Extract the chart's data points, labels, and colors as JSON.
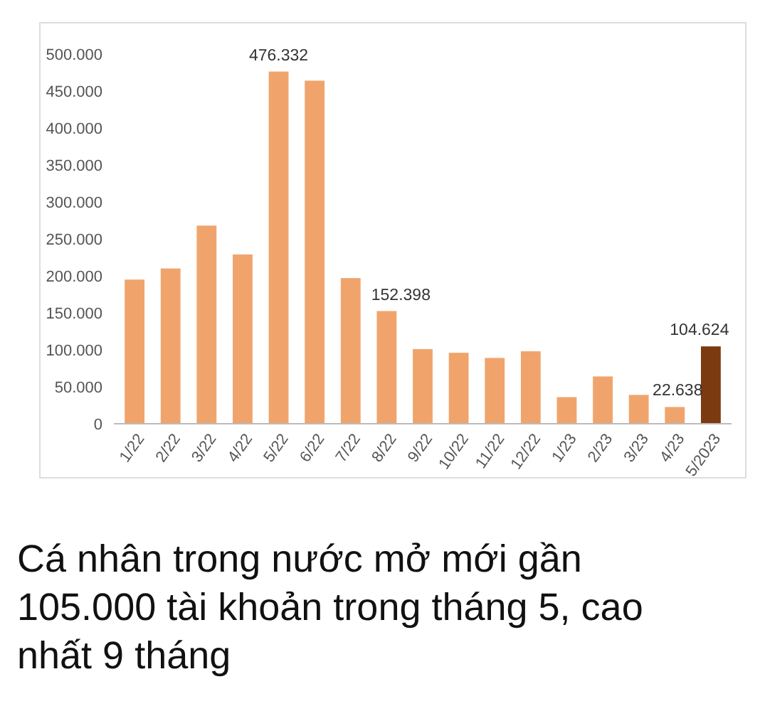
{
  "chart_data": {
    "type": "bar",
    "title": "Cá nhân trong nước mở mới gần 105.000 tài khoản trong tháng 5, cao nhất 9 tháng",
    "categories": [
      "1/22",
      "2/22",
      "3/22",
      "4/22",
      "5/22",
      "6/22",
      "7/22",
      "8/22",
      "9/22",
      "10/22",
      "11/22",
      "12/22",
      "1/23",
      "2/23",
      "3/23",
      "4/23",
      "5/2023"
    ],
    "values": [
      195000,
      210000,
      268000,
      229000,
      476332,
      464000,
      197000,
      152398,
      101000,
      96000,
      89000,
      98000,
      36000,
      64000,
      39000,
      22638,
      104624
    ],
    "colors": [
      "#f0a46c",
      "#f0a46c",
      "#f0a46c",
      "#f0a46c",
      "#f0a46c",
      "#f0a46c",
      "#f0a46c",
      "#f0a46c",
      "#f0a46c",
      "#f0a46c",
      "#f0a46c",
      "#f0a46c",
      "#f0a46c",
      "#f0a46c",
      "#f0a46c",
      "#f0a46c",
      "#7b3a10"
    ],
    "value_labels": [
      null,
      null,
      null,
      null,
      "476.332",
      null,
      null,
      "152.398",
      null,
      null,
      null,
      null,
      null,
      null,
      null,
      "22.638",
      "104.624"
    ],
    "ylim": [
      0,
      500000
    ],
    "yticks": [
      {
        "value": 0,
        "label": "0"
      },
      {
        "value": 50000,
        "label": "50.000"
      },
      {
        "value": 100000,
        "label": "100.000"
      },
      {
        "value": 150000,
        "label": "150.000"
      },
      {
        "value": 200000,
        "label": "200.000"
      },
      {
        "value": 250000,
        "label": "250.000"
      },
      {
        "value": 300000,
        "label": "300.000"
      },
      {
        "value": 350000,
        "label": "350.000"
      },
      {
        "value": 400000,
        "label": "400.000"
      },
      {
        "value": 450000,
        "label": "450.000"
      },
      {
        "value": 500000,
        "label": "500.000"
      }
    ],
    "grid": false
  }
}
